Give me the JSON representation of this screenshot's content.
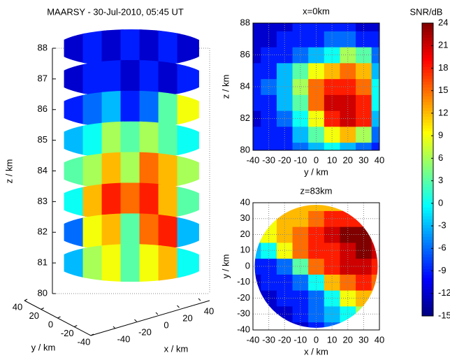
{
  "chart_data": [
    {
      "type": "slices3d",
      "title": "MAARSY - 30-Jul-2010, 05:45 UT",
      "zlabel": "z / km",
      "xlabel": "x / km",
      "ylabel": "y / km",
      "zlim": [
        80,
        88
      ],
      "zticks": [
        80,
        81,
        82,
        83,
        84,
        85,
        86,
        87,
        88
      ],
      "xlim": [
        -40,
        40
      ],
      "xticks": [
        -40,
        -20,
        0,
        20,
        40
      ],
      "ylim": [
        -40,
        40
      ],
      "yticks": [
        -40,
        -20,
        0,
        20,
        40
      ],
      "x": [
        -30,
        -20,
        -10,
        0,
        10,
        20,
        30
      ],
      "slices": [
        {
          "z": 88,
          "values": [
            -12,
            -9,
            -12,
            -9,
            -12,
            -9,
            -12
          ]
        },
        {
          "z": 87,
          "values": [
            -12,
            -9,
            -9,
            -12,
            -9,
            -12,
            -9
          ]
        },
        {
          "z": 86,
          "values": [
            -9,
            -6,
            -3,
            -9,
            -6,
            3,
            9
          ]
        },
        {
          "z": 85,
          "values": [
            -3,
            0,
            6,
            3,
            6,
            3,
            0
          ]
        },
        {
          "z": 84,
          "values": [
            3,
            6,
            12,
            6,
            15,
            12,
            6
          ]
        },
        {
          "z": 83,
          "values": [
            0,
            12,
            18,
            15,
            18,
            12,
            3
          ]
        },
        {
          "z": 82,
          "values": [
            -6,
            9,
            12,
            3,
            15,
            18,
            -3
          ]
        },
        {
          "z": 81,
          "values": [
            -3,
            6,
            9,
            3,
            9,
            12,
            0
          ]
        }
      ],
      "colormap": "jet"
    },
    {
      "type": "heatmap",
      "title": "x=0km",
      "xlabel": "y / km",
      "ylabel": "z / km",
      "xlim": [
        -40,
        40
      ],
      "xticks": [
        -40,
        -30,
        -20,
        -10,
        0,
        10,
        20,
        30,
        40
      ],
      "ylim": [
        80,
        88
      ],
      "yticks": [
        80,
        82,
        84,
        86,
        88
      ],
      "x": [
        -40,
        -30,
        -20,
        -10,
        0,
        10,
        20,
        30,
        40
      ],
      "y": [
        80,
        81,
        82,
        83,
        84,
        85,
        86,
        87,
        88
      ],
      "values": [
        [
          -9,
          -9,
          -9,
          -6,
          -3,
          0,
          -3,
          -6,
          -9
        ],
        [
          -9,
          -9,
          -9,
          -3,
          3,
          9,
          12,
          6,
          -6
        ],
        [
          -12,
          -9,
          -6,
          0,
          9,
          18,
          21,
          18,
          -3
        ],
        [
          -9,
          -9,
          -3,
          3,
          15,
          21,
          21,
          18,
          0
        ],
        [
          -9,
          -6,
          -3,
          6,
          15,
          18,
          18,
          15,
          0
        ],
        [
          -9,
          -9,
          -3,
          3,
          9,
          12,
          15,
          12,
          -3
        ],
        [
          -12,
          -9,
          -9,
          -6,
          -3,
          0,
          6,
          3,
          -6
        ],
        [
          -12,
          -12,
          -9,
          -9,
          -9,
          -6,
          -6,
          -9,
          -9
        ],
        [
          -12,
          -12,
          -12,
          -9,
          -9,
          -9,
          -9,
          -12,
          -12
        ]
      ],
      "grid": true,
      "colormap": "jet"
    },
    {
      "type": "heatmap",
      "title": "z=83km",
      "xlabel": "x / km",
      "ylabel": "y / km",
      "circular": true,
      "xlim": [
        -40,
        40
      ],
      "xticks": [
        -40,
        -30,
        -20,
        -10,
        0,
        10,
        20,
        30,
        40
      ],
      "ylim": [
        -40,
        40
      ],
      "yticks": [
        -40,
        -30,
        -20,
        -10,
        0,
        10,
        20,
        30,
        40
      ],
      "x": [
        -40,
        -30,
        -20,
        -10,
        0,
        10,
        20,
        30,
        40
      ],
      "y": [
        -40,
        -30,
        -20,
        -10,
        0,
        10,
        20,
        30,
        40
      ],
      "values": [
        [
          -12,
          -12,
          -12,
          -12,
          -9,
          -6,
          -3,
          0,
          3
        ],
        [
          -12,
          -12,
          -12,
          -9,
          -6,
          -3,
          0,
          6,
          6
        ],
        [
          -12,
          -12,
          -9,
          -9,
          -6,
          0,
          9,
          12,
          12
        ],
        [
          -12,
          -9,
          -9,
          -6,
          0,
          12,
          15,
          18,
          15
        ],
        [
          -9,
          -9,
          -6,
          3,
          15,
          18,
          21,
          21,
          18
        ],
        [
          -3,
          0,
          9,
          15,
          18,
          18,
          21,
          24,
          21
        ],
        [
          6,
          9,
          12,
          15,
          18,
          21,
          24,
          24,
          18
        ],
        [
          9,
          9,
          12,
          12,
          15,
          18,
          18,
          18,
          12
        ],
        [
          9,
          9,
          12,
          12,
          12,
          12,
          12,
          12,
          9
        ]
      ],
      "grid": true,
      "colormap": "jet"
    },
    {
      "type": "colorbar",
      "label": "SNR/dB",
      "lim": [
        -15,
        24
      ],
      "ticks": [
        -15,
        -12,
        -9,
        -6,
        -3,
        0,
        3,
        6,
        9,
        12,
        15,
        18,
        21,
        24
      ],
      "colormap": "jet"
    }
  ]
}
